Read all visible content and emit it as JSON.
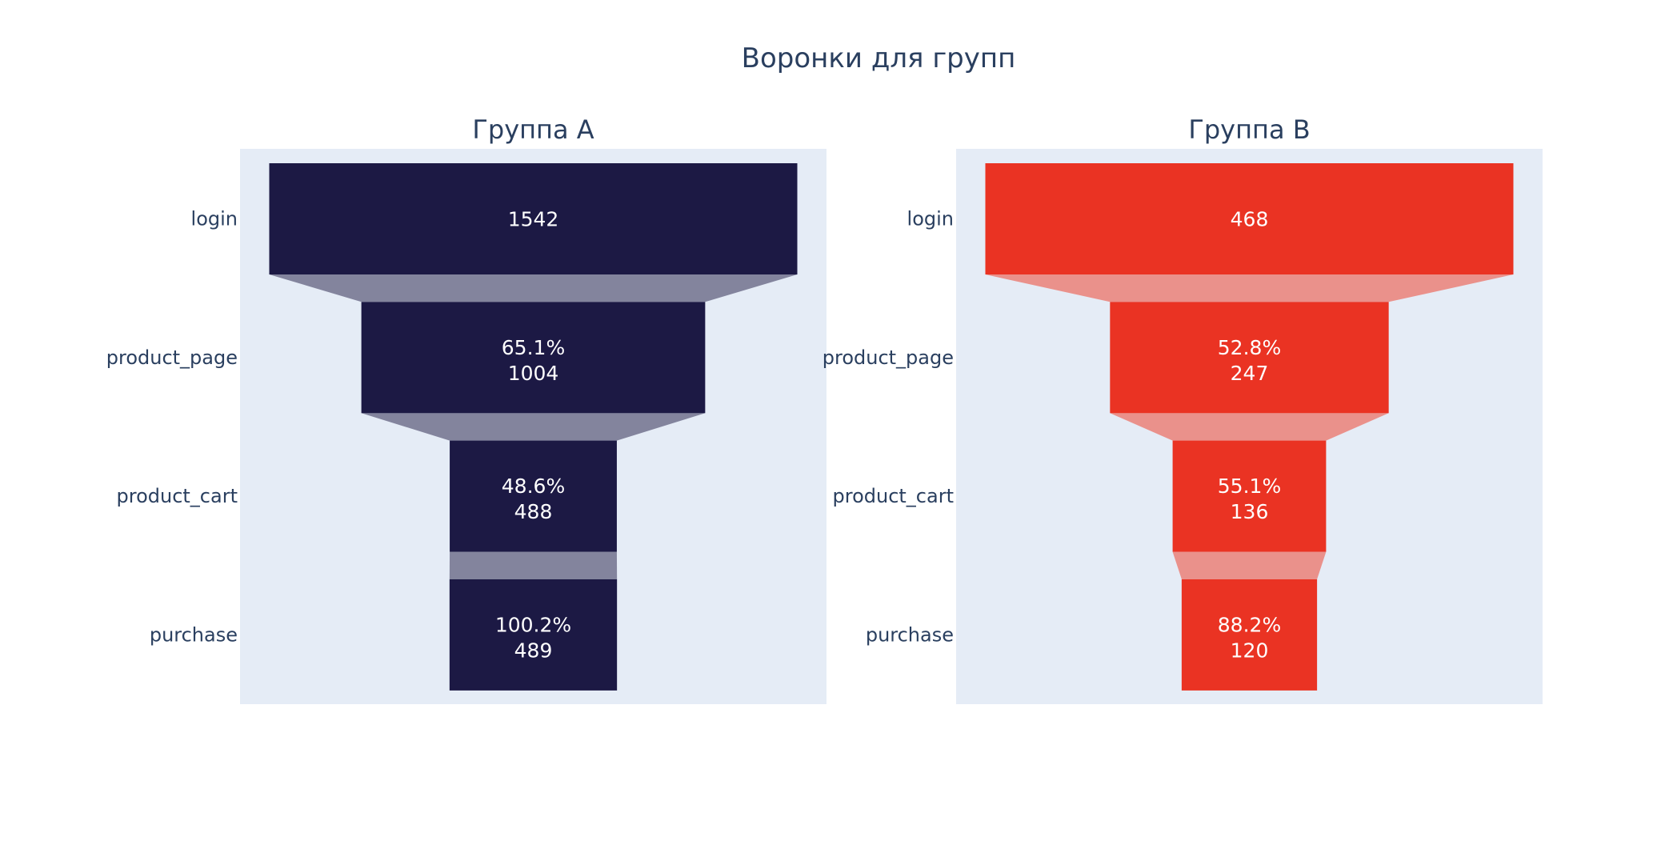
{
  "title": "Воронки для групп",
  "colors": {
    "plot_bg": "#e5ecf6",
    "text": "#2a3f5f"
  },
  "chart_data": [
    {
      "type": "funnel",
      "title": "Группа А",
      "categories": [
        "login",
        "product_page",
        "product_cart",
        "purchase"
      ],
      "values": [
        1542,
        1004,
        488,
        489
      ],
      "percent_labels": [
        "",
        "65.1%",
        "48.6%",
        "100.2%"
      ],
      "bar_color": "#1c1944",
      "connector_color": "#83849d"
    },
    {
      "type": "funnel",
      "title": "Группа B",
      "categories": [
        "login",
        "product_page",
        "product_cart",
        "purchase"
      ],
      "values": [
        468,
        247,
        136,
        120
      ],
      "percent_labels": [
        "",
        "52.8%",
        "55.1%",
        "88.2%"
      ],
      "bar_color": "#ea3323",
      "connector_color": "#ea918b"
    }
  ]
}
